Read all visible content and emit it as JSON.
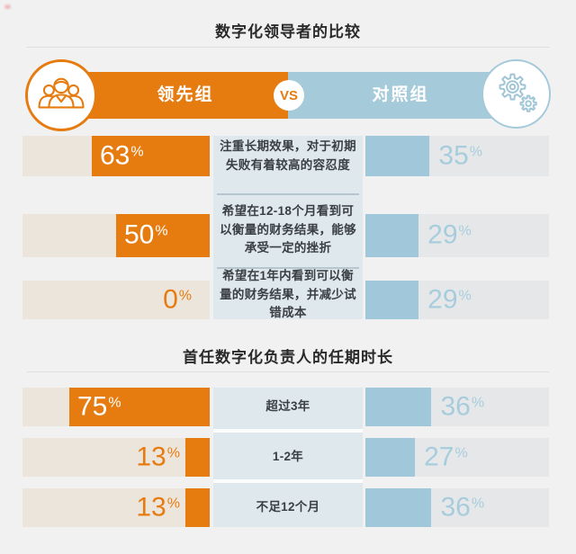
{
  "labels": {
    "percent": "%"
  },
  "colors": {
    "background": "#f1f1f2",
    "orange": "#e67c10",
    "orange_track": "#ece5dc",
    "blue_fill": "#a0c8da",
    "blue_track": "#e6e7e9",
    "panel_blue": "#dee8ed",
    "blue_number": "#a7cddd"
  },
  "header": {
    "left_label": "领先组",
    "vs": "VS",
    "right_label": "对照组",
    "left_icon": "team-icon",
    "right_icon": "gears-icon"
  },
  "section1": {
    "title": "数字化领导者的比较",
    "rows": [
      {
        "left": "63",
        "desc": "注重长期效果，对于初期失败有着较高的容忍度",
        "right": "35"
      },
      {
        "left": "50",
        "desc": "希望在12-18个月看到可以衡量的财务结果，能够承受一定的挫折",
        "right": "29"
      },
      {
        "left": "0",
        "desc": "希望在1年内看到可以衡量的财务结果，并减少试错成本",
        "right": "29"
      }
    ]
  },
  "section2": {
    "title": "首任数字化负责人的任期时长",
    "rows": [
      {
        "left": "75",
        "label": "超过3年",
        "right": "36"
      },
      {
        "left": "13",
        "label": "1-2年",
        "right": "27"
      },
      {
        "left": "13",
        "label": "不足12个月",
        "right": "36"
      }
    ]
  },
  "chart_data": [
    {
      "type": "bar",
      "title": "数字化领导者的比较",
      "categories": [
        "注重长期效果，对于初期失败有着较高的容忍度",
        "希望在12-18个月看到可以衡量的财务结果，能够承受一定的挫折",
        "希望在1年内看到可以衡量的财务结果，并减少试错成本"
      ],
      "series": [
        {
          "name": "领先组",
          "values": [
            63,
            50,
            0
          ]
        },
        {
          "name": "对照组",
          "values": [
            35,
            29,
            29
          ]
        }
      ],
      "unit": "%",
      "xlim": [
        0,
        100
      ],
      "orientation": "horizontal-mirrored",
      "legend_position": "top"
    },
    {
      "type": "bar",
      "title": "首任数字化负责人的任期时长",
      "categories": [
        "超过3年",
        "1-2年",
        "不足12个月"
      ],
      "series": [
        {
          "name": "领先组",
          "values": [
            75,
            13,
            13
          ]
        },
        {
          "name": "对照组",
          "values": [
            36,
            27,
            36
          ]
        }
      ],
      "unit": "%",
      "xlim": [
        0,
        100
      ],
      "orientation": "horizontal-mirrored",
      "legend_position": "top"
    }
  ]
}
